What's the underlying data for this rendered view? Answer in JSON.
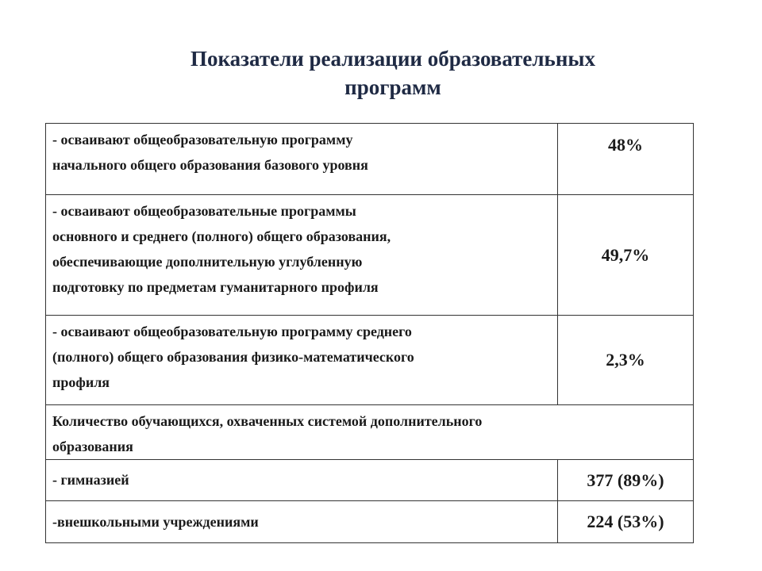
{
  "title": {
    "line1": "Показатели реализации  образовательных",
    "line2": "программ"
  },
  "rows": [
    {
      "lines": [
        "- осваивают общеобразовательную программу",
        "начального общего образования базового уровня"
      ],
      "value": "48%"
    },
    {
      "lines": [
        "- осваивают общеобразовательные программы",
        "основного  и среднего (полного) общего образования,",
        "обеспечивающие дополнительную углубленную",
        "подготовку по предметам гуманитарного профиля"
      ],
      "value": "49,7%"
    },
    {
      "lines": [
        "- осваивают общеобразовательную программу среднего",
        "(полного) общего образования физико-математического",
        "профиля"
      ],
      "value": "2,3%"
    },
    {
      "lines": [
        "Количество обучающихся, охваченных системой дополнительного",
        "образования"
      ]
    },
    {
      "lines": [
        "- гимназией"
      ],
      "value": "377 (89%)"
    },
    {
      "lines": [
        "-внешкольными учреждениями"
      ],
      "value": "224 (53%)"
    }
  ]
}
